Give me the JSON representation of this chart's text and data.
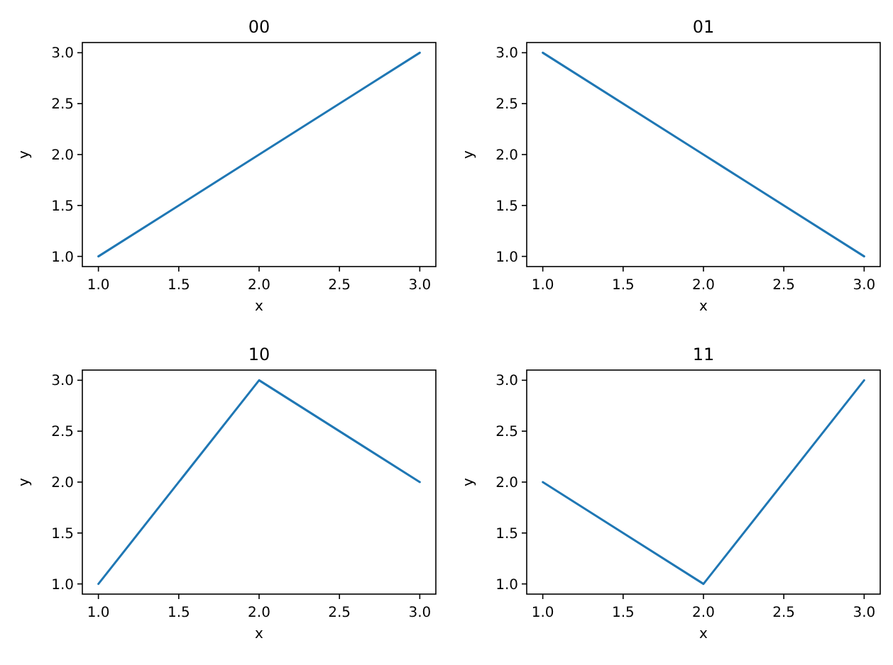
{
  "chart_data": [
    {
      "type": "line",
      "title": "00",
      "xlabel": "x",
      "ylabel": "y",
      "x": [
        1,
        2,
        3
      ],
      "series": [
        {
          "color": "#1f77b4",
          "values": [
            1,
            2,
            3
          ]
        }
      ],
      "xlim": [
        0.9,
        3.1
      ],
      "ylim": [
        0.9,
        3.1
      ],
      "xticks": [
        {
          "value": 1,
          "label": "1.0"
        },
        {
          "value": 1.5,
          "label": "1.5"
        },
        {
          "value": 2,
          "label": "2.0"
        },
        {
          "value": 2.5,
          "label": "2.5"
        },
        {
          "value": 3,
          "label": "3.0"
        }
      ],
      "yticks": [
        {
          "value": 1,
          "label": "1.0"
        },
        {
          "value": 1.5,
          "label": "1.5"
        },
        {
          "value": 2,
          "label": "2.0"
        },
        {
          "value": 2.5,
          "label": "2.5"
        },
        {
          "value": 3,
          "label": "3.0"
        }
      ],
      "grid": false
    },
    {
      "type": "line",
      "title": "01",
      "xlabel": "x",
      "ylabel": "y",
      "x": [
        1,
        2,
        3
      ],
      "series": [
        {
          "color": "#1f77b4",
          "values": [
            3,
            2,
            1
          ]
        }
      ],
      "xlim": [
        0.9,
        3.1
      ],
      "ylim": [
        0.9,
        3.1
      ],
      "xticks": [
        {
          "value": 1,
          "label": "1.0"
        },
        {
          "value": 1.5,
          "label": "1.5"
        },
        {
          "value": 2,
          "label": "2.0"
        },
        {
          "value": 2.5,
          "label": "2.5"
        },
        {
          "value": 3,
          "label": "3.0"
        }
      ],
      "yticks": [
        {
          "value": 1,
          "label": "1.0"
        },
        {
          "value": 1.5,
          "label": "1.5"
        },
        {
          "value": 2,
          "label": "2.0"
        },
        {
          "value": 2.5,
          "label": "2.5"
        },
        {
          "value": 3,
          "label": "3.0"
        }
      ],
      "grid": false
    },
    {
      "type": "line",
      "title": "10",
      "xlabel": "x",
      "ylabel": "y",
      "x": [
        1,
        2,
        3
      ],
      "series": [
        {
          "color": "#1f77b4",
          "values": [
            1,
            3,
            2
          ]
        }
      ],
      "xlim": [
        0.9,
        3.1
      ],
      "ylim": [
        0.9,
        3.1
      ],
      "xticks": [
        {
          "value": 1,
          "label": "1.0"
        },
        {
          "value": 1.5,
          "label": "1.5"
        },
        {
          "value": 2,
          "label": "2.0"
        },
        {
          "value": 2.5,
          "label": "2.5"
        },
        {
          "value": 3,
          "label": "3.0"
        }
      ],
      "yticks": [
        {
          "value": 1,
          "label": "1.0"
        },
        {
          "value": 1.5,
          "label": "1.5"
        },
        {
          "value": 2,
          "label": "2.0"
        },
        {
          "value": 2.5,
          "label": "2.5"
        },
        {
          "value": 3,
          "label": "3.0"
        }
      ],
      "grid": false
    },
    {
      "type": "line",
      "title": "11",
      "xlabel": "x",
      "ylabel": "y",
      "x": [
        1,
        2,
        3
      ],
      "series": [
        {
          "color": "#1f77b4",
          "values": [
            2,
            1,
            3
          ]
        }
      ],
      "xlim": [
        0.9,
        3.1
      ],
      "ylim": [
        0.9,
        3.1
      ],
      "xticks": [
        {
          "value": 1,
          "label": "1.0"
        },
        {
          "value": 1.5,
          "label": "1.5"
        },
        {
          "value": 2,
          "label": "2.0"
        },
        {
          "value": 2.5,
          "label": "2.5"
        },
        {
          "value": 3,
          "label": "3.0"
        }
      ],
      "yticks": [
        {
          "value": 1,
          "label": "1.0"
        },
        {
          "value": 1.5,
          "label": "1.5"
        },
        {
          "value": 2,
          "label": "2.0"
        },
        {
          "value": 2.5,
          "label": "2.5"
        },
        {
          "value": 3,
          "label": "3.0"
        }
      ],
      "grid": false
    }
  ]
}
